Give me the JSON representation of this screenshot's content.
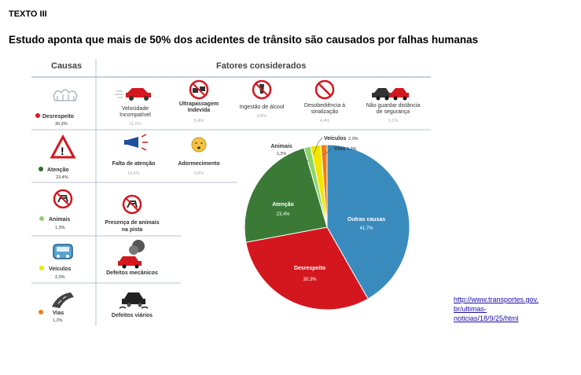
{
  "label": "TEXTO III",
  "headline": "Estudo aponta que mais de 50% dos acidentes de trânsito são causados por falhas humanas",
  "infographic": {
    "col_causas": "Causas",
    "col_fatores": "Fatores considerados",
    "causes": [
      {
        "name": "Desrespeito",
        "pct": "30,3%",
        "color": "#e3171e"
      },
      {
        "name": "Atenção",
        "pct": "23,4%",
        "color": "#2e6b2e"
      },
      {
        "name": "Animais",
        "pct": "1,3%",
        "color": "#8cd36b"
      },
      {
        "name": "Veículos",
        "pct": "2,0%",
        "color": "#f2e600"
      },
      {
        "name": "Vias",
        "pct": "1,2%",
        "color": "#f07d16"
      }
    ],
    "factors_desrespeito": [
      {
        "name1": "Velocidade",
        "name2": "Incompatível",
        "pct": "11,6%"
      },
      {
        "name1": "Ultrapassagem",
        "name2": "Indevida",
        "pct": "8,4%"
      },
      {
        "name1": "Ingestão de álcool",
        "name2": "",
        "pct": "4,8%"
      },
      {
        "name1": "Desobediência à",
        "name2": "sinalização",
        "pct": "4,4%"
      },
      {
        "name1": "Não guardar distância",
        "name2": "de segurança",
        "pct": "1,1%"
      }
    ],
    "factors_atencao": [
      {
        "name": "Falta de atenção",
        "pct": "19,6%"
      },
      {
        "name": "Adormecimento",
        "pct": "3,8%"
      }
    ],
    "factor_animais": {
      "name1": "Presença de animais",
      "name2": "na pista"
    },
    "factor_veiculos": "Defeitos mecânicos",
    "factor_vias": "Defeitos viários"
  },
  "chart_data": {
    "type": "pie",
    "labels": [
      "Outras causas",
      "Desrespeito",
      "Atenção",
      "Animais",
      "Veículos",
      "Vias"
    ],
    "values": [
      41.7,
      30.3,
      23.4,
      1.3,
      2.0,
      1.2
    ],
    "value_labels": [
      "41,7%",
      "30,3%",
      "23,4%",
      "1,3%",
      "2,0%",
      "1,2%"
    ],
    "colors": [
      "#3a8bbd",
      "#d4171e",
      "#3b7a36",
      "#8cd36b",
      "#f2e600",
      "#f07d16"
    ]
  },
  "source": {
    "line1": "http://www.transportes.gov.",
    "line2": "br/ultimas-",
    "line3": "noticias/18/9/25/html"
  }
}
